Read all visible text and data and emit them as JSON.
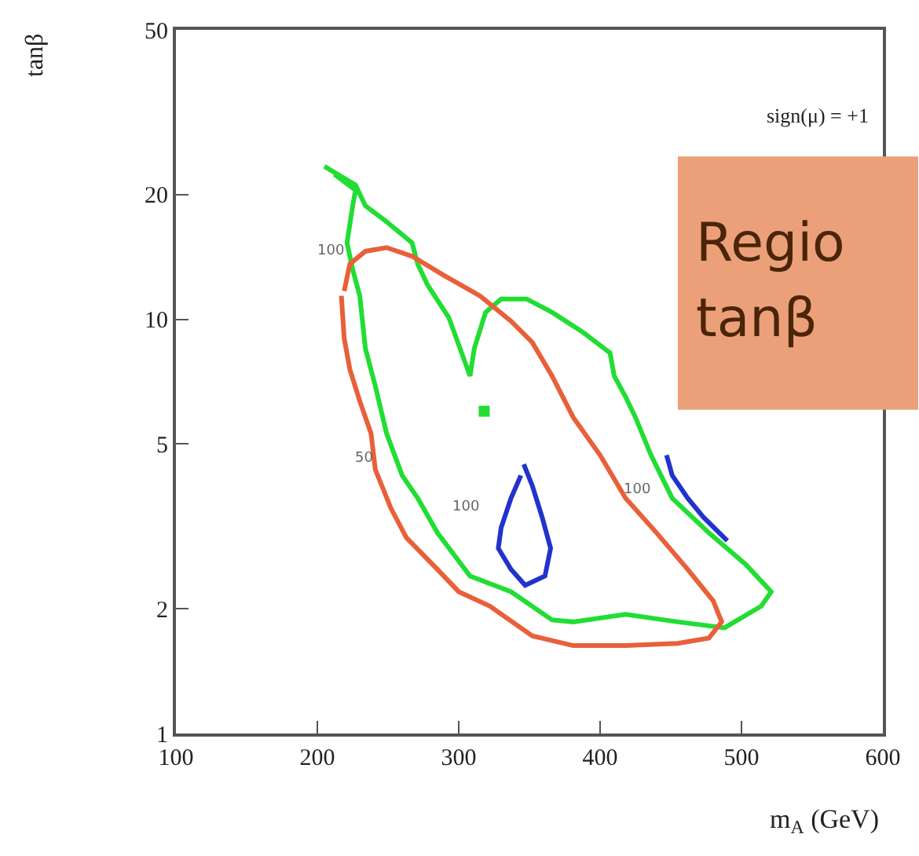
{
  "chart_data": {
    "type": "line",
    "xlabel": "m$_{A}$ (GeV)",
    "ylabel": "tanβ",
    "xlim": [
      100,
      600
    ],
    "xticks": [
      100,
      200,
      300,
      400,
      500,
      600
    ],
    "ylim": [
      1,
      50
    ],
    "yticks": [
      1,
      2,
      5,
      10,
      20,
      50
    ],
    "log": "y",
    "marker": "none",
    "line_style": "solid",
    "series": [
      {
        "color": "#22dd33",
        "x": [
          205,
          227,
          234,
          249,
          267,
          271,
          278,
          293,
          308,
          311,
          319,
          330,
          348,
          366,
          388,
          407,
          410,
          418,
          425,
          436,
          451,
          477,
          503,
          521,
          514,
          488,
          455,
          418,
          381,
          366,
          337,
          308,
          285,
          271,
          260,
          249,
          241,
          234,
          230,
          225,
          221,
          225,
          227,
          212
        ],
        "values": [
          23.4,
          21.1,
          18.8,
          17.2,
          15.3,
          13.6,
          12.1,
          10.1,
          7.3,
          8.5,
          10.4,
          11.2,
          11.2,
          10.4,
          9.3,
          8.3,
          7.3,
          6.5,
          5.8,
          4.7,
          3.7,
          3.05,
          2.56,
          2.2,
          2.03,
          1.8,
          1.86,
          1.94,
          1.86,
          1.88,
          2.2,
          2.4,
          3.05,
          3.7,
          4.2,
          5.3,
          6.9,
          8.5,
          11.4,
          13.2,
          15.3,
          18.8,
          20.5,
          22.4
        ]
      },
      {
        "type": "scatter",
        "marker": "square",
        "color": "#22dd33",
        "x": [
          318
        ],
        "values": [
          6.0
        ]
      },
      {
        "color": "#e8603a",
        "x": [
          219,
          223,
          234,
          249,
          267,
          289,
          315,
          337,
          352,
          366,
          381,
          400,
          418,
          440,
          462,
          480,
          486,
          477,
          455,
          418,
          381,
          352,
          322,
          300,
          285,
          263,
          252,
          241,
          238,
          230,
          223,
          219,
          217
        ],
        "values": [
          11.7,
          13.6,
          14.6,
          14.9,
          14.2,
          12.8,
          11.4,
          9.9,
          8.8,
          7.3,
          5.8,
          4.7,
          3.7,
          3.05,
          2.49,
          2.09,
          1.86,
          1.7,
          1.65,
          1.63,
          1.63,
          1.72,
          2.03,
          2.2,
          2.49,
          2.97,
          3.5,
          4.34,
          5.3,
          6.35,
          7.57,
          9.0,
          11.4
        ]
      },
      {
        "color": "#2233cc",
        "x": [
          346,
          352,
          359,
          365,
          361,
          347,
          337,
          328,
          330,
          337,
          344
        ],
        "values": [
          4.47,
          3.97,
          3.33,
          2.8,
          2.4,
          2.28,
          2.49,
          2.8,
          3.14,
          3.7,
          4.2
        ]
      },
      {
        "color": "#2233cc",
        "x": [
          447,
          451,
          462,
          473,
          490
        ],
        "values": [
          4.7,
          4.2,
          3.7,
          3.33,
          2.92
        ]
      }
    ],
    "annotations": [
      "100",
      "50",
      "100",
      "100",
      "sign(μ) = +1",
      "Regio",
      "tanβ"
    ]
  }
}
